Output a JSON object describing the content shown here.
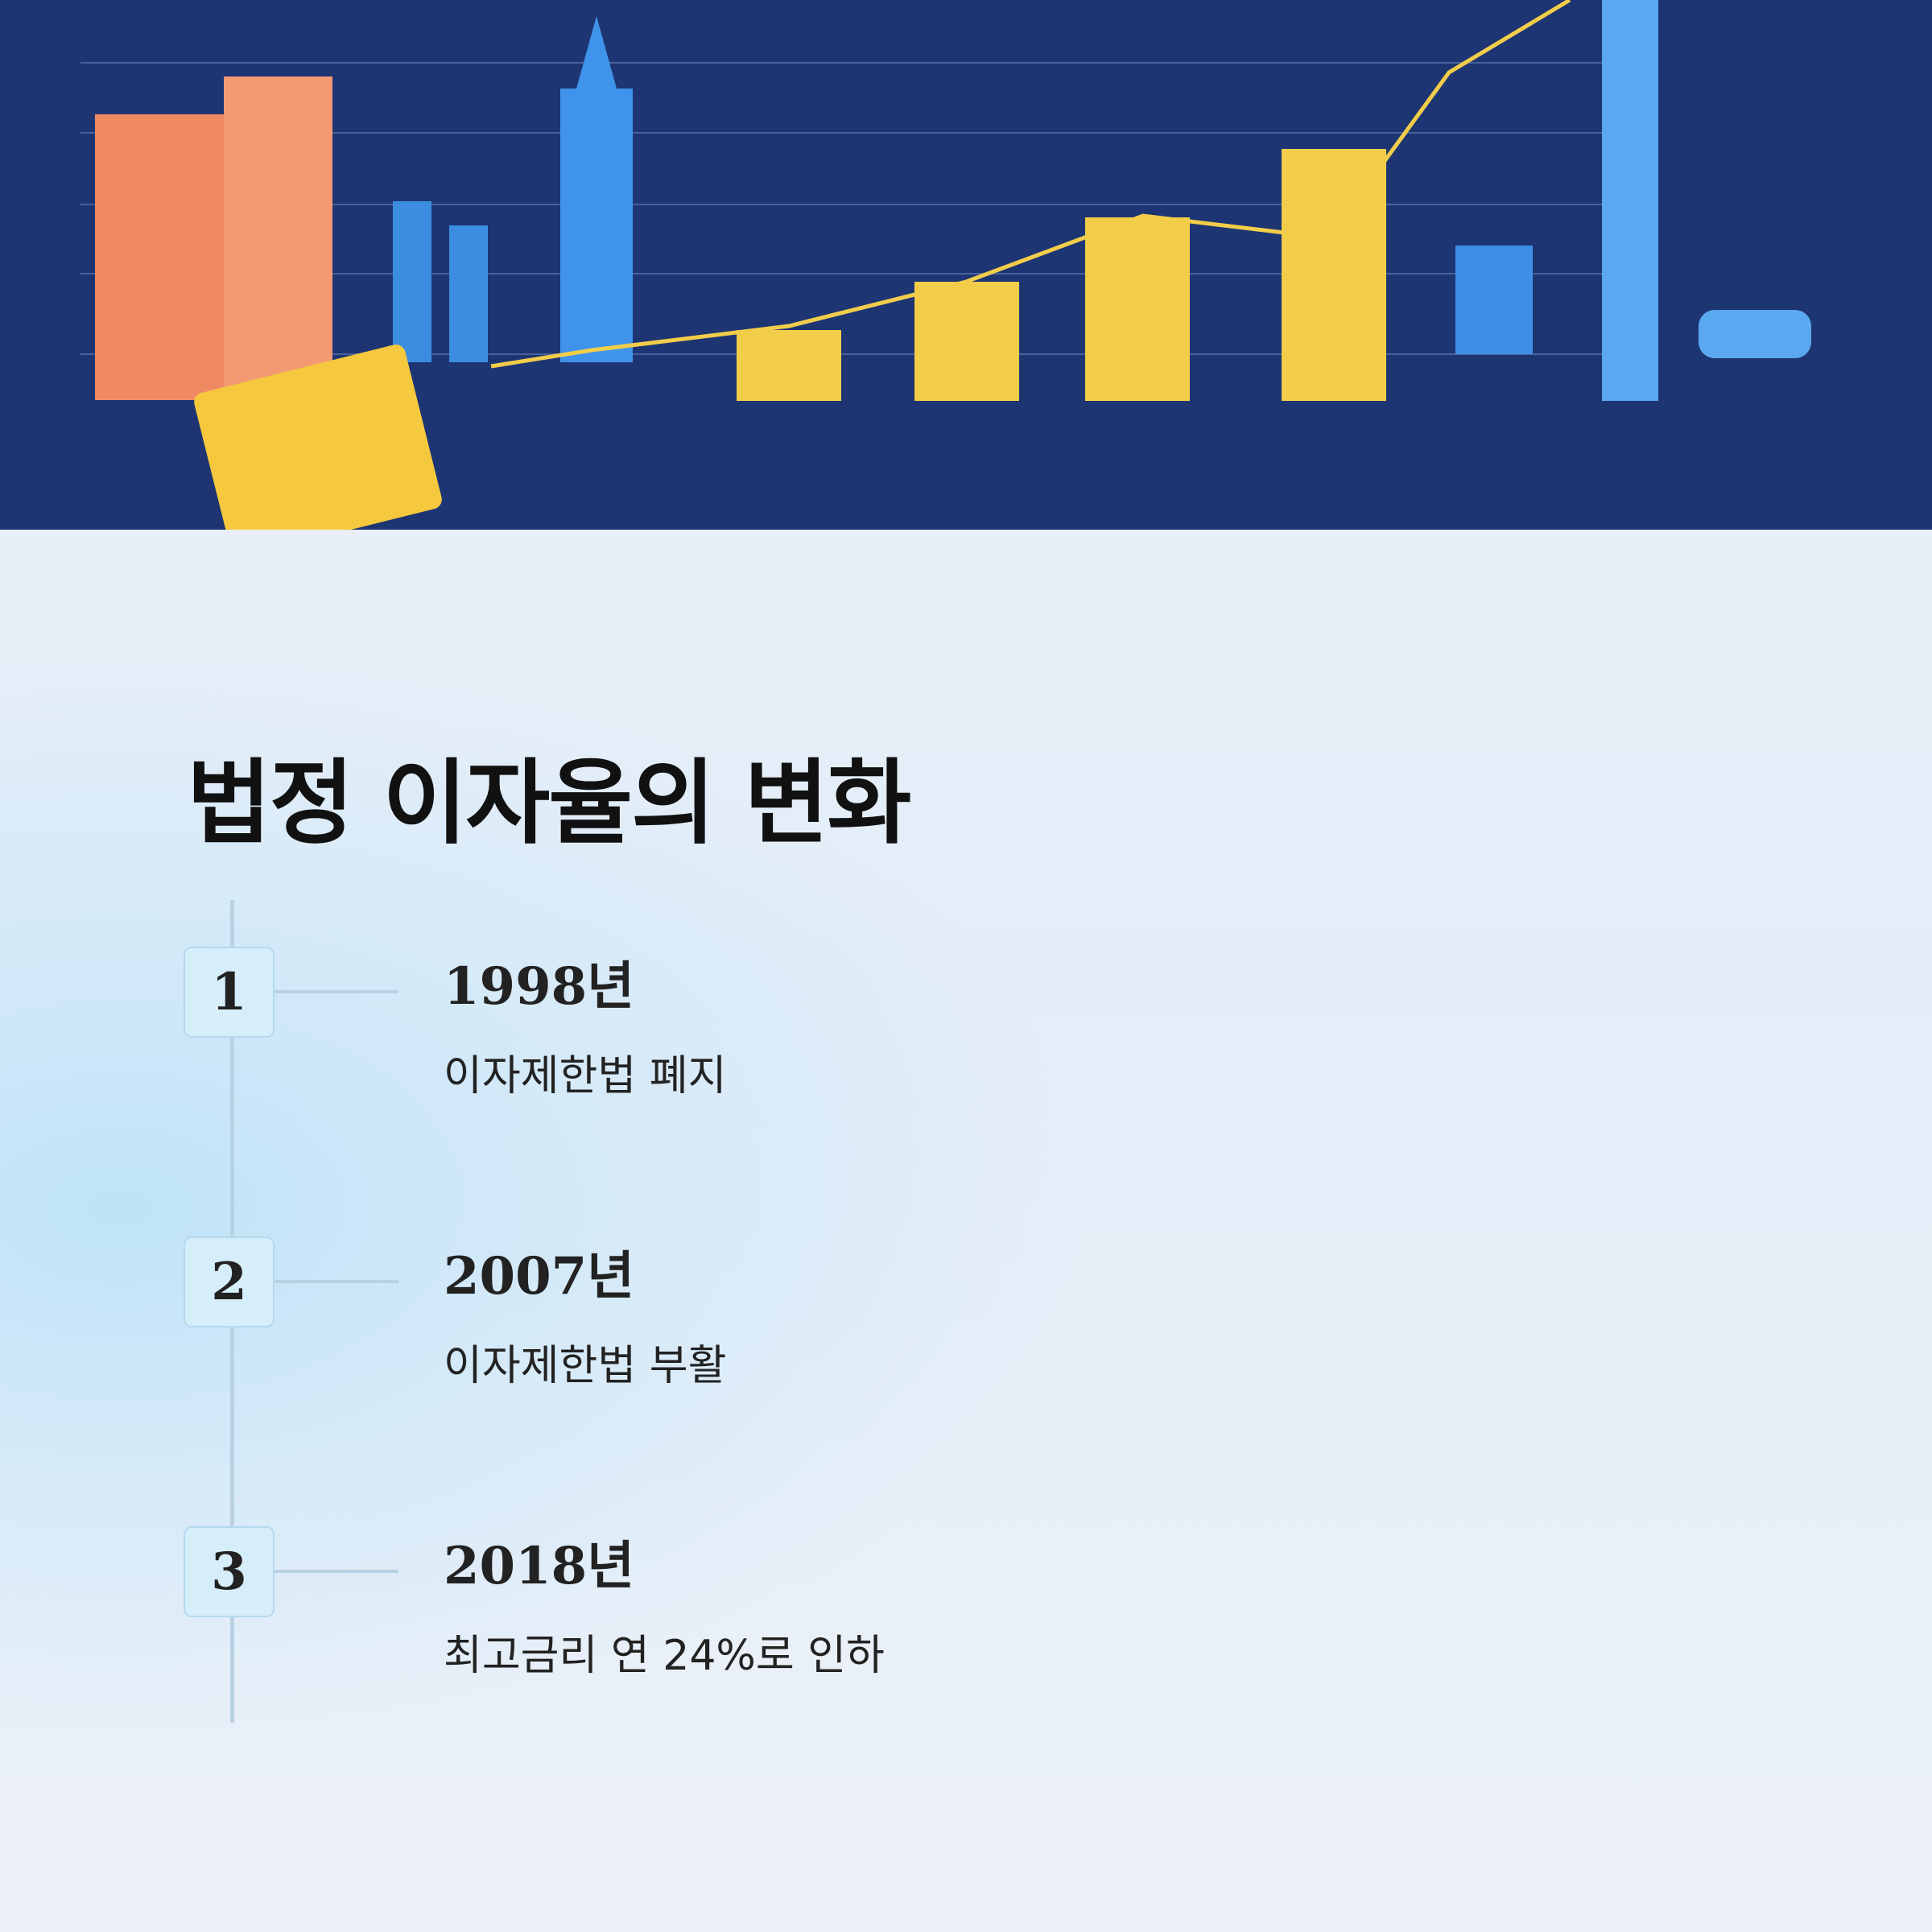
{
  "title": "법정 이자율의 변화",
  "items": [
    {
      "number": "1",
      "year": "1998년",
      "description": "이자제한법 폐지"
    },
    {
      "number": "2",
      "year": "2007년",
      "description": "이자제한법 부활"
    },
    {
      "number": "3",
      "year": "2018년",
      "description": "최고금리 연 24%로 인하"
    }
  ]
}
